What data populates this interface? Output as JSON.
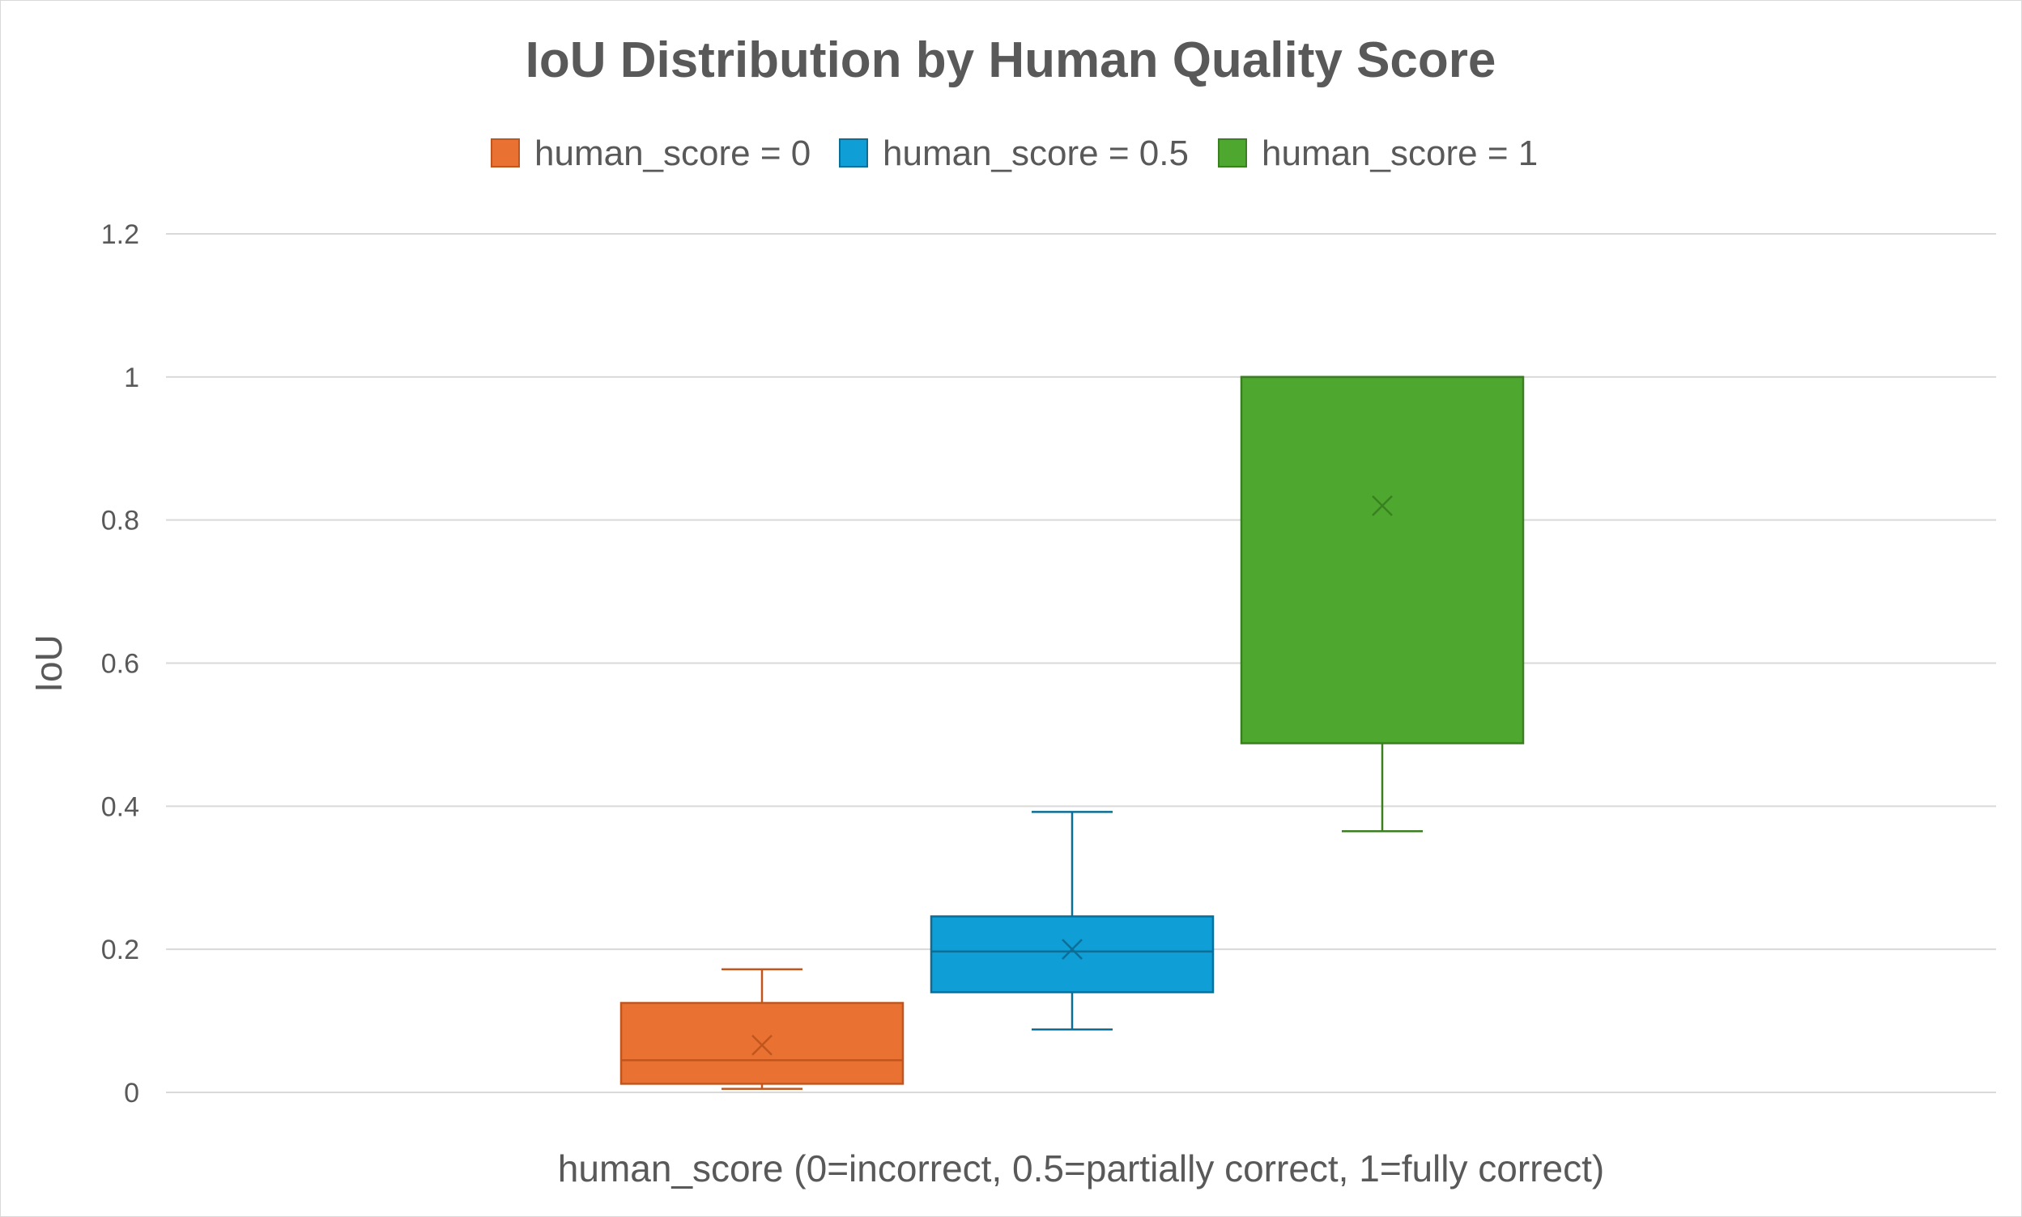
{
  "chart_data": {
    "type": "box",
    "title": "IoU Distribution by Human Quality Score",
    "xlabel": "human_score (0=incorrect, 0.5=partially correct, 1=fully correct)",
    "ylabel": "IoU",
    "ylim": [
      0,
      1.2
    ],
    "yticks": [
      "0",
      "0.2",
      "0.4",
      "0.6",
      "0.8",
      "1",
      "1.2"
    ],
    "grid": true,
    "legend_position": "top",
    "series": [
      {
        "name": "human_score = 0",
        "color": "#E97132",
        "stroke": "#C0561E",
        "min": 0.005,
        "q1": 0.012,
        "median": 0.045,
        "q3": 0.125,
        "max": 0.172,
        "mean": 0.066
      },
      {
        "name": "human_score = 0.5",
        "color": "#0F9ED5",
        "stroke": "#0A6E96",
        "min": 0.088,
        "q1": 0.14,
        "median": 0.197,
        "q3": 0.246,
        "max": 0.392,
        "mean": 0.2
      },
      {
        "name": "human_score = 1",
        "color": "#4EA72E",
        "stroke": "#3A8021",
        "min": 0.365,
        "q1": 0.488,
        "median": 1.0,
        "q3": 1.0,
        "max": 1.0,
        "mean": 0.82
      }
    ]
  }
}
